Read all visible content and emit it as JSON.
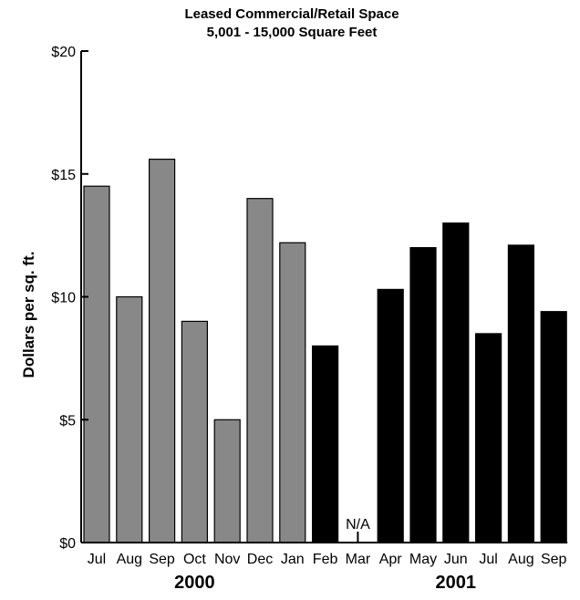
{
  "chart_data": {
    "type": "bar",
    "title": "Leased Commercial/Retail Space",
    "subtitle": "5,001 - 15,000 Square Feet",
    "ylabel": "Dollars per sq. ft.",
    "xlabel": "",
    "ylim": [
      0,
      20
    ],
    "yticks": [
      0,
      5,
      10,
      15,
      20
    ],
    "ytick_labels": [
      "$0",
      "$5",
      "$10",
      "$15",
      "$20"
    ],
    "categories": [
      "Jul",
      "Aug",
      "Sep",
      "Oct",
      "Nov",
      "Dec",
      "Jan",
      "Feb",
      "Mar",
      "Apr",
      "May",
      "Jun",
      "Jul",
      "Aug",
      "Sep"
    ],
    "values": [
      14.5,
      10,
      15.6,
      9,
      5,
      14,
      12.2,
      8,
      null,
      10.3,
      12,
      13,
      8.5,
      12.1,
      9.4
    ],
    "bar_colors": [
      "#888888",
      "#888888",
      "#888888",
      "#888888",
      "#888888",
      "#888888",
      "#888888",
      "#000000",
      "#000000",
      "#000000",
      "#000000",
      "#000000",
      "#000000",
      "#000000",
      "#000000"
    ],
    "annotations": [
      {
        "category_index": 8,
        "text": "N/A"
      }
    ],
    "year_groups": [
      {
        "label": "2000",
        "start": 0,
        "end": 6
      },
      {
        "label": "2001",
        "start": 8,
        "end": 14
      }
    ],
    "grid": false,
    "legend": "none"
  }
}
